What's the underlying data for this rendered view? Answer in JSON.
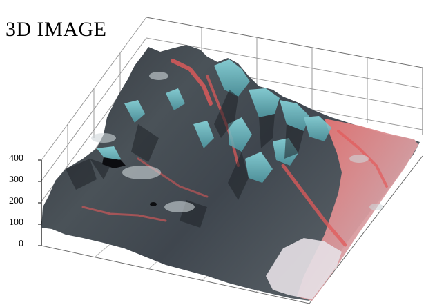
{
  "figure": {
    "title": "3D IMAGE",
    "z_ticks": [
      "400",
      "300",
      "200",
      "100",
      "0"
    ]
  },
  "colors": {
    "background": "#ffffff",
    "axis": "#000000",
    "grid": "#8a8a8a",
    "terrain_dark": "#2b2f36",
    "terrain_cyan": "#6fc6cf",
    "terrain_red": "#e2524f",
    "terrain_light": "#d8d2d6"
  }
}
